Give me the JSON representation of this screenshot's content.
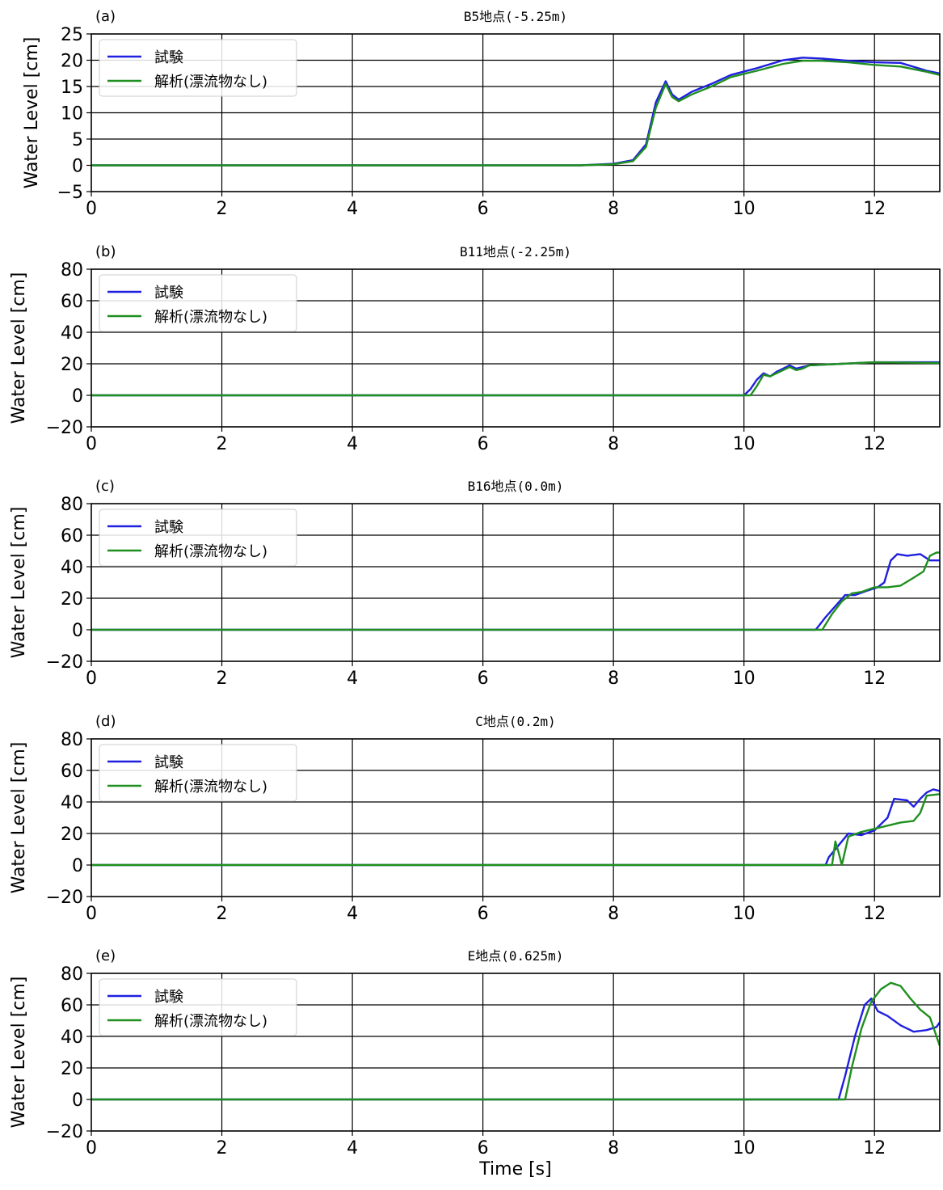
{
  "chart_data": [
    {
      "type": "line",
      "panel_label": "(a)",
      "title": "B5地点(-5.25m)",
      "xlabel": "",
      "ylabel": "Water Level [cm]",
      "xlim": [
        0,
        13
      ],
      "ylim": [
        -5,
        25
      ],
      "xticks": [
        0,
        2,
        4,
        6,
        8,
        10,
        12
      ],
      "yticks": [
        -5,
        0,
        5,
        10,
        15,
        20,
        25
      ],
      "grid": true,
      "legend_position": "top-left",
      "series": [
        {
          "name": "試験",
          "color": "#1f1fe0",
          "x": [
            0,
            7.5,
            8.0,
            8.3,
            8.5,
            8.65,
            8.8,
            8.9,
            9.0,
            9.2,
            9.5,
            9.8,
            10.2,
            10.6,
            10.9,
            11.2,
            11.6,
            12.0,
            12.4,
            12.8,
            13.0
          ],
          "y": [
            0,
            0,
            0.3,
            1,
            4,
            12,
            16,
            13.5,
            12.5,
            14,
            15.5,
            17.2,
            18.5,
            20,
            20.5,
            20.3,
            19.9,
            19.6,
            19.5,
            18,
            17.5
          ]
        },
        {
          "name": "解析(漂流物なし)",
          "color": "#1f8f1f",
          "x": [
            0,
            7.5,
            8.0,
            8.3,
            8.5,
            8.65,
            8.8,
            8.9,
            9.0,
            9.2,
            9.5,
            9.8,
            10.2,
            10.6,
            10.9,
            11.2,
            11.6,
            12.0,
            12.4,
            12.8,
            13.0
          ],
          "y": [
            0,
            0,
            0.2,
            0.8,
            3.5,
            11,
            15.5,
            13,
            12.2,
            13.5,
            15,
            16.8,
            18,
            19.3,
            19.9,
            19.9,
            19.6,
            19.1,
            18.8,
            17.8,
            17.2
          ]
        }
      ]
    },
    {
      "type": "line",
      "panel_label": "(b)",
      "title": "B11地点(-2.25m)",
      "xlabel": "",
      "ylabel": "Water Level [cm]",
      "xlim": [
        0,
        13
      ],
      "ylim": [
        -20,
        80
      ],
      "xticks": [
        0,
        2,
        4,
        6,
        8,
        10,
        12
      ],
      "yticks": [
        -20,
        0,
        20,
        40,
        60,
        80
      ],
      "grid": true,
      "legend_position": "top-left",
      "series": [
        {
          "name": "試験",
          "color": "#1f1fe0",
          "x": [
            0,
            10.0,
            10.1,
            10.2,
            10.3,
            10.4,
            10.5,
            10.6,
            10.7,
            10.8,
            10.9,
            11.0,
            11.5,
            12.0,
            13.0
          ],
          "y": [
            0,
            0,
            4,
            10,
            14,
            12,
            15,
            17,
            19,
            17,
            18,
            19,
            20,
            21,
            21
          ]
        },
        {
          "name": "解析(漂流物なし)",
          "color": "#1f8f1f",
          "x": [
            0,
            10.1,
            10.2,
            10.3,
            10.4,
            10.5,
            10.6,
            10.7,
            10.8,
            10.9,
            11.0,
            11.5,
            12.0,
            13.0
          ],
          "y": [
            0,
            0,
            6,
            13,
            12,
            14,
            16,
            18,
            16,
            17,
            19,
            20,
            21,
            20.5
          ]
        }
      ]
    },
    {
      "type": "line",
      "panel_label": "(c)",
      "title": "B16地点(0.0m)",
      "xlabel": "",
      "ylabel": "Water Level [cm]",
      "xlim": [
        0,
        13
      ],
      "ylim": [
        -20,
        80
      ],
      "xticks": [
        0,
        2,
        4,
        6,
        8,
        10,
        12
      ],
      "yticks": [
        -20,
        0,
        20,
        40,
        60,
        80
      ],
      "grid": true,
      "legend_position": "top-left",
      "series": [
        {
          "name": "試験",
          "color": "#1f1fe0",
          "x": [
            0,
            11.1,
            11.25,
            11.4,
            11.55,
            11.7,
            11.9,
            12.05,
            12.15,
            12.25,
            12.35,
            12.5,
            12.7,
            12.85,
            13.0
          ],
          "y": [
            0,
            0,
            8,
            15,
            22,
            22,
            25,
            27,
            30,
            44,
            48,
            47,
            48,
            44,
            44
          ]
        },
        {
          "name": "解析(漂流物なし)",
          "color": "#1f8f1f",
          "x": [
            0,
            11.2,
            11.35,
            11.5,
            11.65,
            11.8,
            12.0,
            12.2,
            12.4,
            12.6,
            12.75,
            12.85,
            12.95,
            13.0
          ],
          "y": [
            0,
            0,
            10,
            18,
            23,
            24,
            27,
            27,
            28,
            33,
            37,
            47,
            49,
            49
          ]
        }
      ]
    },
    {
      "type": "line",
      "panel_label": "(d)",
      "title": "C地点(0.2m)",
      "xlabel": "",
      "ylabel": "Water Level [cm]",
      "xlim": [
        0,
        13
      ],
      "ylim": [
        -20,
        80
      ],
      "xticks": [
        0,
        2,
        4,
        6,
        8,
        10,
        12
      ],
      "yticks": [
        -20,
        0,
        20,
        40,
        60,
        80
      ],
      "grid": true,
      "legend_position": "top-left",
      "series": [
        {
          "name": "試験",
          "color": "#1f1fe0",
          "x": [
            0,
            11.25,
            11.3,
            11.4,
            11.5,
            11.6,
            11.8,
            12.0,
            12.2,
            12.3,
            12.5,
            12.6,
            12.7,
            12.8,
            12.9,
            13.0
          ],
          "y": [
            0,
            0,
            5,
            10,
            15,
            20,
            19,
            22,
            30,
            42,
            41,
            37,
            42,
            46,
            48,
            47
          ]
        },
        {
          "name": "解析(漂流物なし)",
          "color": "#1f8f1f",
          "x": [
            0,
            11.35,
            11.4,
            11.45,
            11.5,
            11.6,
            11.8,
            12.0,
            12.2,
            12.4,
            12.6,
            12.7,
            12.8,
            13.0
          ],
          "y": [
            0,
            0,
            15,
            8,
            0,
            18,
            21,
            23,
            25,
            27,
            28,
            33,
            44,
            45
          ]
        }
      ]
    },
    {
      "type": "line",
      "panel_label": "(e)",
      "title": "E地点(0.625m)",
      "xlabel": "Time [s]",
      "ylabel": "Water Level [cm]",
      "xlim": [
        0,
        13
      ],
      "ylim": [
        -20,
        80
      ],
      "xticks": [
        0,
        2,
        4,
        6,
        8,
        10,
        12
      ],
      "yticks": [
        -20,
        0,
        20,
        40,
        60,
        80
      ],
      "grid": true,
      "legend_position": "top-left",
      "series": [
        {
          "name": "試験",
          "color": "#1f1fe0",
          "x": [
            0,
            11.45,
            11.55,
            11.7,
            11.85,
            11.95,
            12.05,
            12.2,
            12.4,
            12.6,
            12.8,
            12.95,
            13.0
          ],
          "y": [
            0,
            0,
            15,
            40,
            60,
            64,
            56,
            53,
            47,
            43,
            44,
            46,
            49
          ]
        },
        {
          "name": "解析(漂流物なし)",
          "color": "#1f8f1f",
          "x": [
            0,
            11.55,
            11.65,
            11.8,
            11.95,
            12.1,
            12.25,
            12.4,
            12.55,
            12.7,
            12.85,
            12.95,
            13.0
          ],
          "y": [
            0,
            0,
            20,
            45,
            62,
            70,
            74,
            72,
            64,
            57,
            52,
            40,
            34
          ]
        }
      ]
    }
  ]
}
